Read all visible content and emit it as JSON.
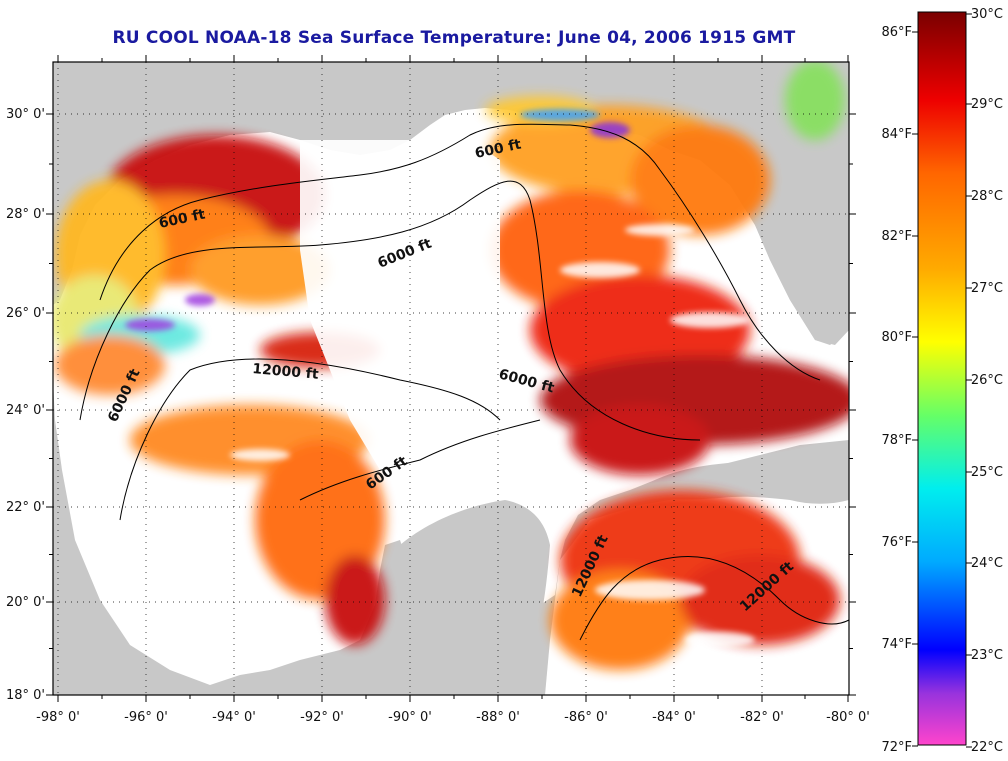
{
  "title": "RU COOL  NOAA-18  Sea Surface Temperature:  June 04, 2006 1915 GMT",
  "map": {
    "lon_ticks": [
      "-98° 0'",
      "-96° 0'",
      "-94° 0'",
      "-92° 0'",
      "-90° 0'",
      "-88° 0'",
      "-86° 0'",
      "-84° 0'",
      "-82° 0'",
      "-80° 0'"
    ],
    "lat_ticks": [
      "30° 0'",
      "28° 0'",
      "26° 0'",
      "24° 0'",
      "22° 0'",
      "20° 0'",
      "18° 0'"
    ],
    "lon_range": [
      -98,
      -80
    ],
    "lat_range": [
      18,
      31
    ],
    "grid": "dotted",
    "colors": {
      "land": "#c8c8c8",
      "no_data": "#ffffff",
      "contour": "#000000"
    }
  },
  "contour_labels": [
    "600 ft",
    "600 ft",
    "6000 ft",
    "12000 ft",
    "6000 ft",
    "6000 ft",
    "600 ft",
    "12000 ft",
    "12000 ft"
  ],
  "colorbar": {
    "fahrenheit_labels": [
      "86°F",
      "84°F",
      "82°F",
      "80°F",
      "78°F",
      "76°F",
      "74°F",
      "72°F"
    ],
    "celsius_labels": [
      "30°C",
      "29°C",
      "28°C",
      "27°C",
      "26°C",
      "25°C",
      "24°C",
      "23°C",
      "22°C"
    ],
    "range_c": [
      22,
      30
    ],
    "colors": [
      "#ff44cc",
      "#8833dd",
      "#0000ff",
      "#00aaff",
      "#00eeee",
      "#66ff66",
      "#ffff00",
      "#ffaa00",
      "#ff6600",
      "#ee0000",
      "#aa0000",
      "#7a0000"
    ]
  }
}
